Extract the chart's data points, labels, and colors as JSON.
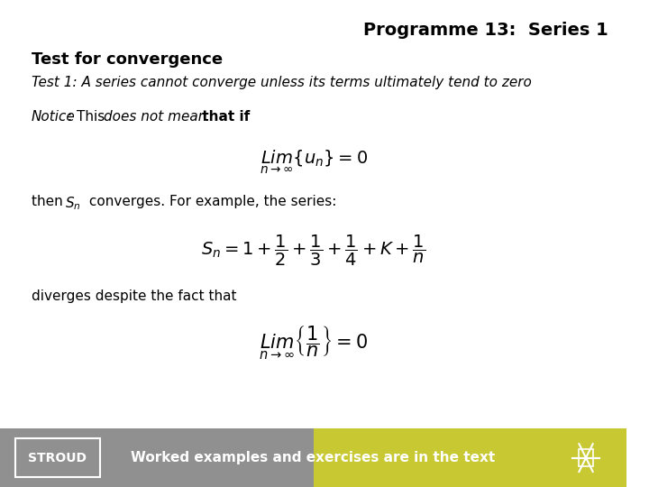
{
  "title": "Programme 13:  Series 1",
  "section_title": "Test for convergence",
  "test1_text": "Test 1: A series cannot converge unless its terms ultimately tend to zero",
  "diverges_text": "diverges despite the fact that",
  "footer_left": "STROUD",
  "footer_right": "Worked examples and exercises are in the text",
  "bg_color": "#ffffff",
  "footer_bg_left": "#909090",
  "footer_bg_right": "#c8c832",
  "footer_text_color": "#ffffff",
  "title_color": "#000000",
  "title_fontsize": 14,
  "section_fontsize": 13,
  "body_fontsize": 11,
  "formula_fontsize": 14
}
